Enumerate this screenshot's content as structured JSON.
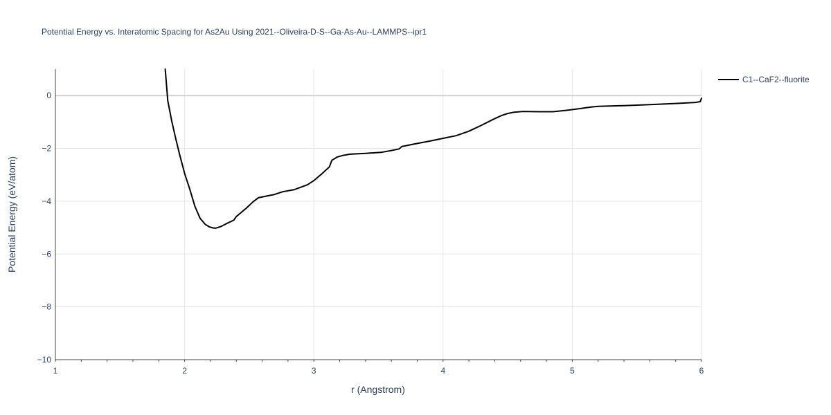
{
  "chart_data": {
    "type": "line",
    "title": "Potential Energy vs. Interatomic Spacing for As2Au Using 2021--Oliveira-D-S--Ga-As-Au--LAMMPS--ipr1",
    "xlabel": "r (Angstrom)",
    "ylabel": "Potential Energy (eV/atom)",
    "xlim": [
      1,
      6
    ],
    "ylim": [
      -10,
      1
    ],
    "x_ticks": [
      "1",
      "2",
      "3",
      "4",
      "5",
      "6"
    ],
    "y_ticks": [
      "−10",
      "−8",
      "−6",
      "−4",
      "−2",
      "0"
    ],
    "grid": true,
    "legend_position": "top-right",
    "series": [
      {
        "name": "C1--CaF2--fluorite",
        "color": "#000000",
        "x": [
          1.85,
          1.87,
          1.9,
          1.93,
          1.96,
          2.0,
          2.04,
          2.08,
          2.12,
          2.16,
          2.19,
          2.22,
          2.24,
          2.28,
          2.32,
          2.38,
          2.4,
          2.48,
          2.53,
          2.57,
          2.62,
          2.69,
          2.76,
          2.85,
          2.95,
          3.0,
          3.06,
          3.12,
          3.14,
          3.18,
          3.22,
          3.28,
          3.4,
          3.52,
          3.6,
          3.66,
          3.68,
          3.78,
          3.9,
          4.0,
          4.1,
          4.2,
          4.3,
          4.38,
          4.45,
          4.5,
          4.55,
          4.62,
          4.75,
          4.85,
          4.95,
          5.05,
          5.15,
          5.2,
          5.4,
          5.6,
          5.8,
          5.95,
          5.99,
          6.0
        ],
        "values": [
          1.0,
          -0.2,
          -0.95,
          -1.6,
          -2.2,
          -2.95,
          -3.55,
          -4.2,
          -4.65,
          -4.88,
          -4.97,
          -5.01,
          -5.02,
          -4.96,
          -4.86,
          -4.72,
          -4.58,
          -4.25,
          -4.02,
          -3.87,
          -3.82,
          -3.75,
          -3.64,
          -3.56,
          -3.38,
          -3.22,
          -2.97,
          -2.7,
          -2.45,
          -2.33,
          -2.27,
          -2.22,
          -2.19,
          -2.15,
          -2.08,
          -2.02,
          -1.93,
          -1.83,
          -1.72,
          -1.62,
          -1.52,
          -1.35,
          -1.12,
          -0.92,
          -0.76,
          -0.68,
          -0.63,
          -0.6,
          -0.61,
          -0.61,
          -0.56,
          -0.5,
          -0.43,
          -0.41,
          -0.38,
          -0.34,
          -0.3,
          -0.26,
          -0.23,
          -0.1
        ]
      }
    ]
  }
}
